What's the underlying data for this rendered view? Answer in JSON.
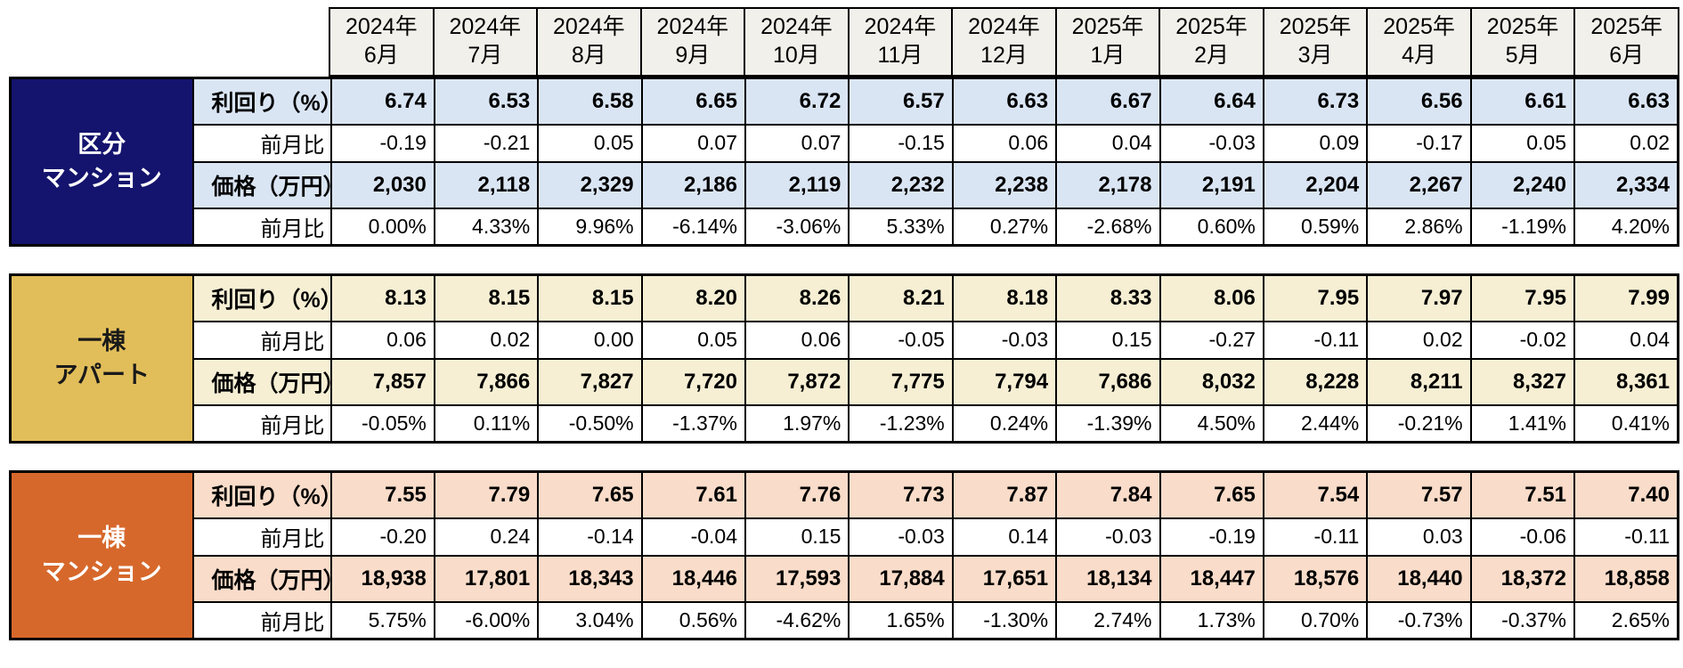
{
  "chart_data": {
    "type": "table",
    "column_headers": [
      [
        "2024年",
        "6月"
      ],
      [
        "2024年",
        "7月"
      ],
      [
        "2024年",
        "8月"
      ],
      [
        "2024年",
        "9月"
      ],
      [
        "2024年",
        "10月"
      ],
      [
        "2024年",
        "11月"
      ],
      [
        "2024年",
        "12月"
      ],
      [
        "2025年",
        "1月"
      ],
      [
        "2025年",
        "2月"
      ],
      [
        "2025年",
        "3月"
      ],
      [
        "2025年",
        "4月"
      ],
      [
        "2025年",
        "5月"
      ],
      [
        "2025年",
        "6月"
      ]
    ],
    "groups": [
      {
        "name": "区分マンション",
        "label_lines": [
          "区分",
          "マンション"
        ],
        "rows": [
          {
            "label": "利回り（%）",
            "emphasis": true,
            "values": [
              "6.74",
              "6.53",
              "6.58",
              "6.65",
              "6.72",
              "6.57",
              "6.63",
              "6.67",
              "6.64",
              "6.73",
              "6.56",
              "6.61",
              "6.63"
            ]
          },
          {
            "label": "前月比",
            "emphasis": false,
            "values": [
              "-0.19",
              "-0.21",
              "0.05",
              "0.07",
              "0.07",
              "-0.15",
              "0.06",
              "0.04",
              "-0.03",
              "0.09",
              "-0.17",
              "0.05",
              "0.02"
            ]
          },
          {
            "label": "価格（万円）",
            "emphasis": true,
            "values": [
              "2,030",
              "2,118",
              "2,329",
              "2,186",
              "2,119",
              "2,232",
              "2,238",
              "2,178",
              "2,191",
              "2,204",
              "2,267",
              "2,240",
              "2,334"
            ]
          },
          {
            "label": "前月比",
            "emphasis": false,
            "values": [
              "0.00%",
              "4.33%",
              "9.96%",
              "-6.14%",
              "-3.06%",
              "5.33%",
              "0.27%",
              "-2.68%",
              "0.60%",
              "0.59%",
              "2.86%",
              "-1.19%",
              "4.20%"
            ]
          }
        ]
      },
      {
        "name": "一棟アパート",
        "label_lines": [
          "一棟",
          "アパート"
        ],
        "rows": [
          {
            "label": "利回り（%）",
            "emphasis": true,
            "values": [
              "8.13",
              "8.15",
              "8.15",
              "8.20",
              "8.26",
              "8.21",
              "8.18",
              "8.33",
              "8.06",
              "7.95",
              "7.97",
              "7.95",
              "7.99"
            ]
          },
          {
            "label": "前月比",
            "emphasis": false,
            "values": [
              "0.06",
              "0.02",
              "0.00",
              "0.05",
              "0.06",
              "-0.05",
              "-0.03",
              "0.15",
              "-0.27",
              "-0.11",
              "0.02",
              "-0.02",
              "0.04"
            ]
          },
          {
            "label": "価格（万円）",
            "emphasis": true,
            "values": [
              "7,857",
              "7,866",
              "7,827",
              "7,720",
              "7,872",
              "7,775",
              "7,794",
              "7,686",
              "8,032",
              "8,228",
              "8,211",
              "8,327",
              "8,361"
            ]
          },
          {
            "label": "前月比",
            "emphasis": false,
            "values": [
              "-0.05%",
              "0.11%",
              "-0.50%",
              "-1.37%",
              "1.97%",
              "-1.23%",
              "0.24%",
              "-1.39%",
              "4.50%",
              "2.44%",
              "-0.21%",
              "1.41%",
              "0.41%"
            ]
          }
        ]
      },
      {
        "name": "一棟マンション",
        "label_lines": [
          "一棟",
          "マンション"
        ],
        "rows": [
          {
            "label": "利回り（%）",
            "emphasis": true,
            "values": [
              "7.55",
              "7.79",
              "7.65",
              "7.61",
              "7.76",
              "7.73",
              "7.87",
              "7.84",
              "7.65",
              "7.54",
              "7.57",
              "7.51",
              "7.40"
            ]
          },
          {
            "label": "前月比",
            "emphasis": false,
            "values": [
              "-0.20",
              "0.24",
              "-0.14",
              "-0.04",
              "0.15",
              "-0.03",
              "0.14",
              "-0.03",
              "-0.19",
              "-0.11",
              "0.03",
              "-0.06",
              "-0.11"
            ]
          },
          {
            "label": "価格（万円）",
            "emphasis": true,
            "values": [
              "18,938",
              "17,801",
              "18,343",
              "18,446",
              "17,593",
              "17,884",
              "17,651",
              "18,134",
              "18,447",
              "18,576",
              "18,440",
              "18,372",
              "18,858"
            ]
          },
          {
            "label": "前月比",
            "emphasis": false,
            "values": [
              "5.75%",
              "-6.00%",
              "3.04%",
              "0.56%",
              "-4.62%",
              "1.65%",
              "-1.30%",
              "2.74%",
              "1.73%",
              "0.70%",
              "-0.73%",
              "-0.37%",
              "2.65%"
            ]
          }
        ]
      }
    ]
  },
  "colors": {
    "header_bg": "#F2F0EA",
    "border": "#000000",
    "groups": [
      {
        "label_bg": "#14146E",
        "label_text": "#FFFFFF",
        "highlight_bg": "#DAE5F4"
      },
      {
        "label_bg": "#E2BE5A",
        "label_text": "#1A1A1A",
        "highlight_bg": "#F6EFD4"
      },
      {
        "label_bg": "#D7682B",
        "label_text": "#FFFFFF",
        "highlight_bg": "#F9DCC9"
      }
    ]
  }
}
